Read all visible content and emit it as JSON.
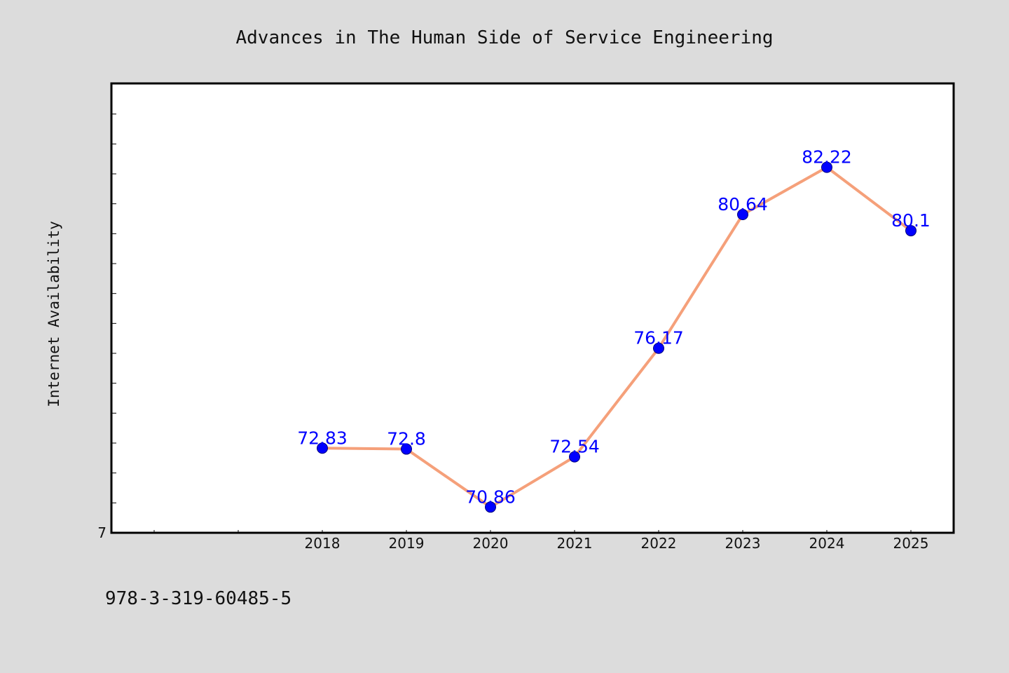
{
  "chart_data": {
    "type": "line",
    "title": "Advances in The Human Side of Service Engineering",
    "xlabel": "",
    "ylabel": "Internet Availability",
    "categories": [
      "2018",
      "2019",
      "2020",
      "2021",
      "2022",
      "2023",
      "2024",
      "2025"
    ],
    "series": [
      {
        "values": [
          72.83,
          72.8,
          70.86,
          72.54,
          76.17,
          80.64,
          82.22,
          80.1
        ]
      }
    ],
    "data_labels": [
      "72.83",
      "72.8",
      "70.86",
      "72.54",
      "76.17",
      "80.64",
      "82.22",
      "80.1"
    ],
    "ylim": [
      70.0,
      85.0
    ],
    "y_tick_labels": [
      "7"
    ],
    "grid": false,
    "legend": "none",
    "colors": {
      "line": "#f5a07a",
      "marker": "#0000ff",
      "data_label": "#0000ff",
      "background": "#dcdcdc",
      "plot_area": "#ffffff"
    }
  },
  "footer": {
    "isbn": "978-3-319-60485-5"
  }
}
